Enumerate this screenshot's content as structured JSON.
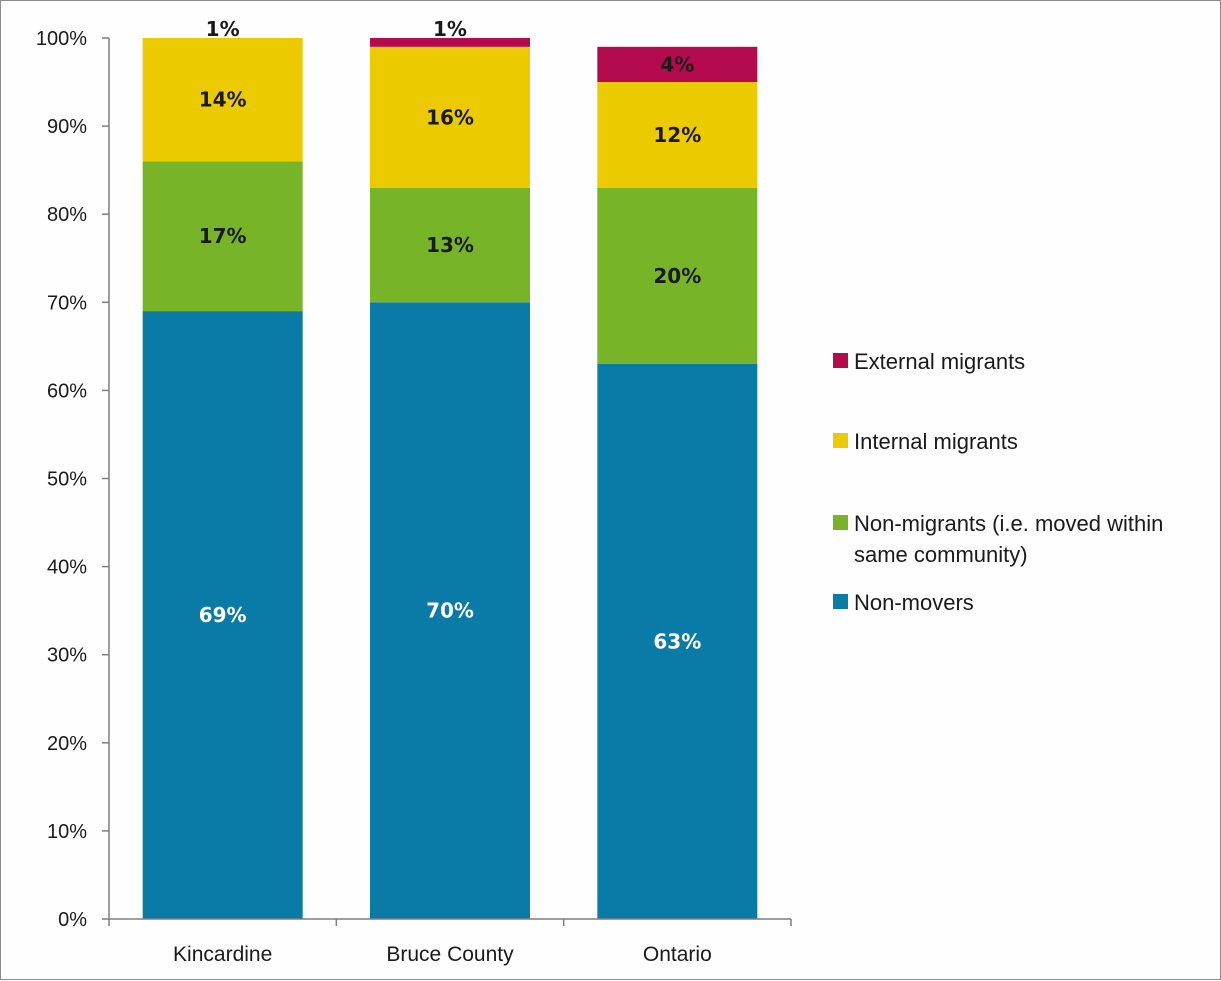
{
  "chart_data": {
    "type": "bar",
    "stacked": true,
    "categories": [
      "Kincardine",
      "Bruce County",
      "Ontario"
    ],
    "series": [
      {
        "name": "Non-movers",
        "values": [
          69,
          70,
          63
        ],
        "labels": [
          "69%",
          "70%",
          "63%"
        ],
        "color": "#0a7aa6",
        "label_color": "#ffffff"
      },
      {
        "name": "Non-migrants (i.e. moved within same community)",
        "name_lines": [
          "Non-migrants (i.e. moved within",
          "same community)"
        ],
        "values": [
          17,
          13,
          20
        ],
        "labels": [
          "17%",
          "13%",
          "20%"
        ],
        "color": "#78b427",
        "label_color": "#1a1a1a"
      },
      {
        "name": "Internal migrants",
        "values": [
          14,
          16,
          12
        ],
        "labels": [
          "14%",
          "16%",
          "12%"
        ],
        "color": "#ecca00",
        "label_color": "#1a1a1a"
      },
      {
        "name": "External migrants",
        "values": [
          1,
          1,
          4
        ],
        "labels": [
          "1%",
          "1%",
          "4%"
        ],
        "color": "#b40a4e",
        "label_color": "#1a1a1a"
      }
    ],
    "y_ticks": [
      "0%",
      "10%",
      "20%",
      "30%",
      "40%",
      "50%",
      "60%",
      "70%",
      "80%",
      "90%",
      "100%"
    ],
    "ylim": [
      0,
      100
    ],
    "legend_order": [
      "External migrants",
      "Internal migrants",
      "Non-migrants (i.e. moved within same community)",
      "Non-movers"
    ],
    "legend_position": "right",
    "grid": false
  }
}
